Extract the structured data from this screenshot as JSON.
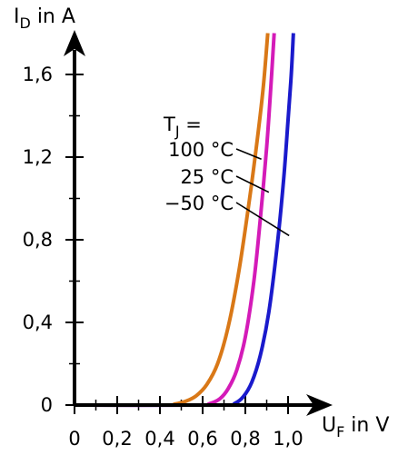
{
  "chart_data": {
    "type": "line",
    "title": "",
    "xlabel": {
      "main": "U",
      "sub": "F",
      "rest": " in V"
    },
    "ylabel": {
      "main": "I",
      "sub": "D",
      "rest": " in A"
    },
    "xlim": [
      0,
      1.1
    ],
    "ylim": [
      0,
      1.8
    ],
    "x_ticks": [
      0,
      0.2,
      0.4,
      0.6,
      0.8,
      1.0
    ],
    "x_tick_labels": [
      "0",
      "0,2",
      "0,4",
      "0,6",
      "0,8",
      "1,0"
    ],
    "x_minor_ticks": [
      0.1,
      0.3,
      0.5,
      0.7,
      0.9
    ],
    "y_ticks": [
      0,
      0.4,
      0.8,
      1.2,
      1.6
    ],
    "y_tick_labels": [
      "0",
      "0,4",
      "0,8",
      "1,2",
      "1,6"
    ],
    "y_minor_ticks": [
      0.2,
      0.6,
      1.0,
      1.4
    ],
    "grid": false,
    "legend": {
      "placement": "center",
      "title_main": "T",
      "title_sub": "J",
      "title_rest": " ="
    },
    "series": [
      {
        "name": "100 °C",
        "color": "#d97817",
        "x": [
          0.0,
          0.42,
          0.47,
          0.52,
          0.57,
          0.62,
          0.67,
          0.72,
          0.77,
          0.82,
          0.86,
          0.885,
          0.905
        ],
        "y": [
          0.0,
          0.0,
          0.005,
          0.018,
          0.045,
          0.1,
          0.2,
          0.38,
          0.65,
          1.0,
          1.32,
          1.55,
          1.8
        ],
        "label_point": [
          0.875,
          1.19
        ]
      },
      {
        "name": "25 °C",
        "color": "#d41bb8",
        "x": [
          0.0,
          0.58,
          0.63,
          0.68,
          0.72,
          0.76,
          0.8,
          0.84,
          0.87,
          0.9,
          0.92,
          0.935
        ],
        "y": [
          0.0,
          0.0,
          0.006,
          0.03,
          0.08,
          0.17,
          0.33,
          0.6,
          0.9,
          1.25,
          1.55,
          1.8
        ],
        "label_point": [
          0.91,
          1.03
        ]
      },
      {
        "name": "−50 °C",
        "color": "#1a1acc",
        "x": [
          0.0,
          0.7,
          0.75,
          0.79,
          0.83,
          0.87,
          0.91,
          0.95,
          0.98,
          1.0,
          1.015,
          1.025
        ],
        "y": [
          0.0,
          0.0,
          0.008,
          0.04,
          0.11,
          0.24,
          0.45,
          0.78,
          1.1,
          1.38,
          1.6,
          1.8
        ],
        "label_point": [
          1.005,
          0.82
        ]
      }
    ]
  }
}
